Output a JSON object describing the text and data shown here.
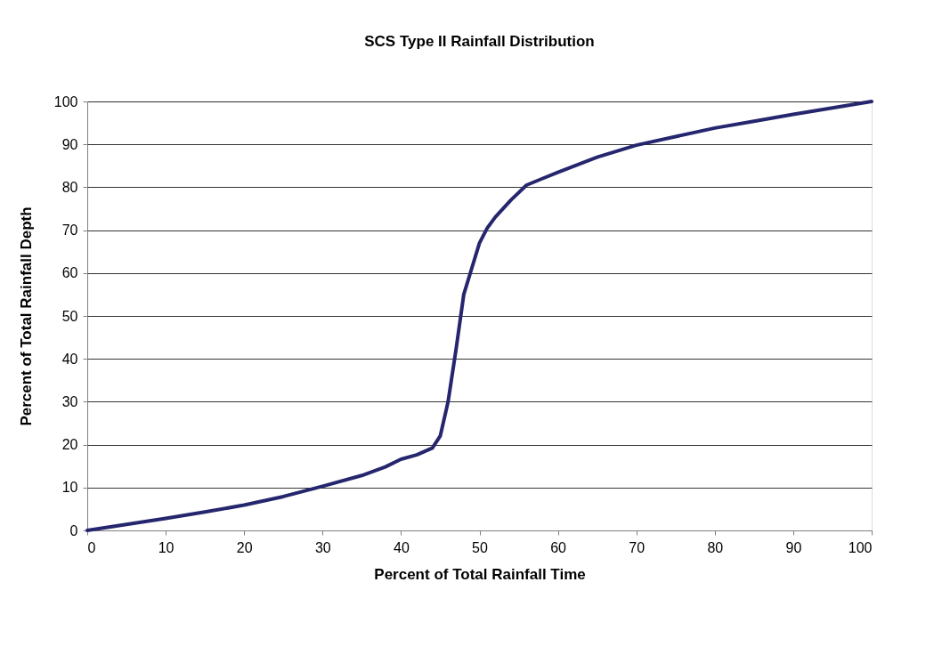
{
  "chart_data": {
    "type": "line",
    "title": "SCS Type II Rainfall Distribution",
    "xlabel": "Percent of Total Rainfall Time",
    "ylabel": "Percent of Total Rainfall Depth",
    "x": [
      0,
      5,
      10,
      15,
      20,
      25,
      30,
      35,
      38,
      40,
      42,
      44,
      45,
      46,
      47,
      48,
      49,
      50,
      51,
      52,
      54,
      56,
      58,
      60,
      65,
      70,
      75,
      80,
      85,
      90,
      95,
      100
    ],
    "series": [
      {
        "color": "#26266e",
        "values": [
          0,
          1.4,
          2.8,
          4.3,
          5.9,
          7.9,
          10.3,
          12.8,
          14.8,
          16.6,
          17.6,
          19.2,
          22,
          30,
          42,
          55,
          61,
          67,
          70.5,
          73,
          77,
          80.5,
          82,
          83.5,
          87,
          89.8,
          91.8,
          93.8,
          95.4,
          97,
          98.5,
          100
        ]
      }
    ],
    "xlim": [
      0,
      100
    ],
    "xticks": [
      0,
      10,
      20,
      30,
      40,
      50,
      60,
      70,
      80,
      90,
      100
    ],
    "ylim": [
      0,
      100
    ],
    "yticks": [
      0,
      10,
      20,
      30,
      40,
      50,
      60,
      70,
      80,
      90,
      100
    ],
    "grid": "y",
    "legend": false,
    "marker": "none",
    "line_style": "solid"
  }
}
